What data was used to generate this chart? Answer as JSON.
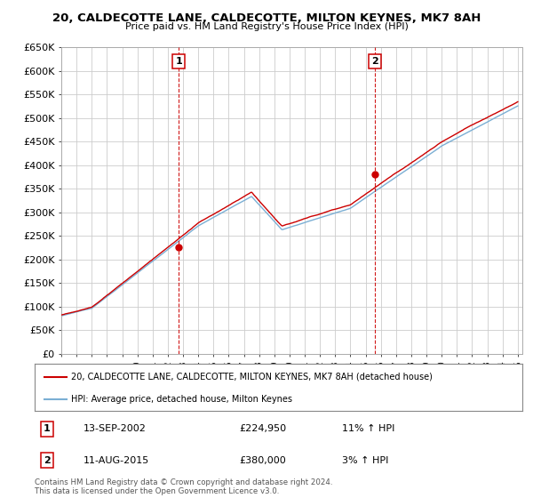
{
  "title": "20, CALDECOTTE LANE, CALDECOTTE, MILTON KEYNES, MK7 8AH",
  "subtitle": "Price paid vs. HM Land Registry's House Price Index (HPI)",
  "ylim": [
    0,
    650000
  ],
  "yticks": [
    0,
    50000,
    100000,
    150000,
    200000,
    250000,
    300000,
    350000,
    400000,
    450000,
    500000,
    550000,
    600000,
    650000
  ],
  "ytick_labels": [
    "£0",
    "£50K",
    "£100K",
    "£150K",
    "£200K",
    "£250K",
    "£300K",
    "£350K",
    "£400K",
    "£450K",
    "£500K",
    "£550K",
    "£600K",
    "£650K"
  ],
  "transaction1": {
    "year": 2002.72,
    "price": 224950,
    "label": "1",
    "date": "13-SEP-2002",
    "price_str": "£224,950",
    "hpi_pct": "11% ↑ HPI"
  },
  "transaction2": {
    "year": 2015.62,
    "price": 380000,
    "label": "2",
    "date": "11-AUG-2015",
    "price_str": "£380,000",
    "hpi_pct": "3% ↑ HPI"
  },
  "legend_line1": "20, CALDECOTTE LANE, CALDECOTTE, MILTON KEYNES, MK7 8AH (detached house)",
  "legend_line2": "HPI: Average price, detached house, Milton Keynes",
  "footer": "Contains HM Land Registry data © Crown copyright and database right 2024.\nThis data is licensed under the Open Government Licence v3.0.",
  "red_color": "#cc0000",
  "blue_color": "#7bafd4",
  "grid_color": "#cccccc",
  "background_color": "#ffffff"
}
